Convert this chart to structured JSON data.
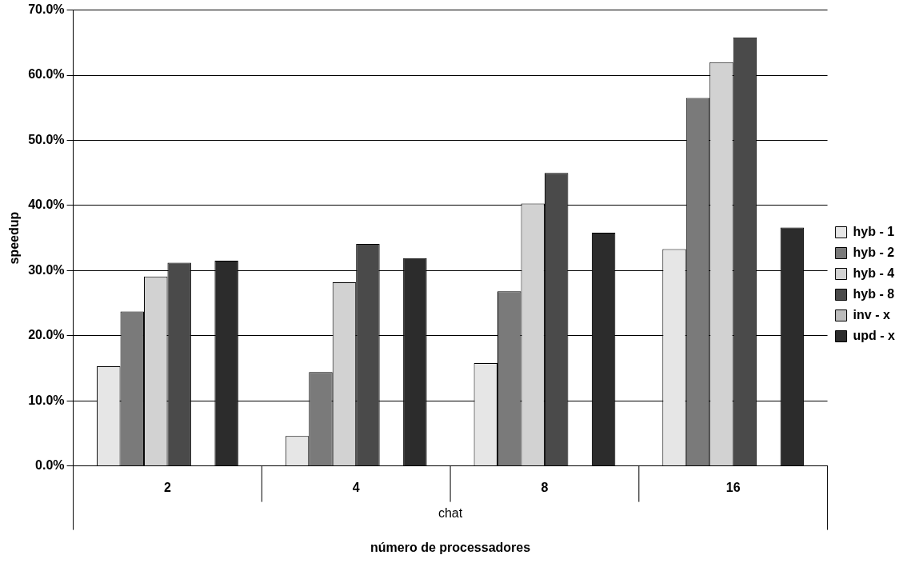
{
  "chart_data": {
    "type": "bar",
    "xlabel": "número de processadores",
    "ylabel": "speedup",
    "annotations": [
      "chat"
    ],
    "categories": [
      "2",
      "4",
      "8",
      "16"
    ],
    "series": [
      {
        "name": "hyb - 1",
        "color": "#e6e6e6",
        "values": [
          15.3,
          4.6,
          15.8,
          33.3
        ]
      },
      {
        "name": "hyb - 2",
        "color": "#7a7a7a",
        "values": [
          23.7,
          14.4,
          26.8,
          56.5
        ]
      },
      {
        "name": "hyb - 4",
        "color": "#d2d2d2",
        "values": [
          29.1,
          28.2,
          40.3,
          62.0
        ]
      },
      {
        "name": "hyb - 8",
        "color": "#4a4a4a",
        "values": [
          31.2,
          34.1,
          45.0,
          65.8
        ]
      },
      {
        "name": "inv - x",
        "color": "#bcbcbc",
        "values": [
          null,
          null,
          null,
          null
        ]
      },
      {
        "name": "upd - x",
        "color": "#2c2c2c",
        "values": [
          31.5,
          31.9,
          35.8,
          36.6
        ]
      }
    ],
    "ylim": [
      0,
      70
    ],
    "yticks": [
      {
        "value": 0,
        "label": "0.0%"
      },
      {
        "value": 10,
        "label": "10.0%"
      },
      {
        "value": 20,
        "label": "20.0%"
      },
      {
        "value": 30,
        "label": "30.0%"
      },
      {
        "value": 40,
        "label": "40.0%"
      },
      {
        "value": 50,
        "label": "50.0%"
      },
      {
        "value": 60,
        "label": "60.0%"
      },
      {
        "value": 70,
        "label": "70.0%"
      }
    ],
    "grid": "y",
    "legend": "right"
  }
}
